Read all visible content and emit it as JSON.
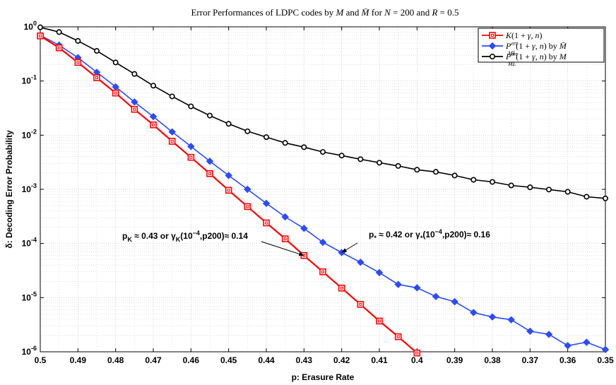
{
  "chart_data": {
    "type": "line",
    "title": "Error Performances of LDPC codes by M and M̄ for N = 200 and R = 0.5",
    "xlabel": "p: Erasure Rate",
    "ylabel": "δ: Decoding Error Probability",
    "xlim": [
      0.5,
      0.35
    ],
    "xdirection": "reversed",
    "ylim": [
      1e-06,
      1
    ],
    "yscale": "log",
    "grid": true,
    "legend_position": "top-right",
    "xticks": [
      0.5,
      0.49,
      0.48,
      0.47,
      0.46,
      0.45,
      0.44,
      0.43,
      0.42,
      0.41,
      0.4,
      0.39,
      0.38,
      0.37,
      0.36,
      0.35
    ],
    "xtick_labels": [
      "0.5",
      "0.49",
      "0.48",
      "0.47",
      "0.46",
      "0.45",
      "0.44",
      "0.43",
      "0.42",
      "0.41",
      "0.4",
      "0.39",
      "0.38",
      "0.37",
      "0.36",
      "0.35"
    ],
    "yticks": [
      {
        "exp": "0",
        "value": 1
      },
      {
        "exp": "-1",
        "value": 0.1
      },
      {
        "exp": "-2",
        "value": 0.01
      },
      {
        "exp": "-3",
        "value": 0.001
      },
      {
        "exp": "-4",
        "value": 0.0001
      },
      {
        "exp": "-5",
        "value": 1e-05
      },
      {
        "exp": "-6",
        "value": 1e-06
      }
    ],
    "ytick_base": "10",
    "series": [
      {
        "name": "K(1 + γ, n)",
        "color": "#ff0000",
        "marker": "square",
        "x": [
          0.5,
          0.495,
          0.49,
          0.485,
          0.48,
          0.475,
          0.47,
          0.465,
          0.46,
          0.455,
          0.45,
          0.445,
          0.44,
          0.435,
          0.43,
          0.425,
          0.42,
          0.415,
          0.41,
          0.405,
          0.4
        ],
        "y": [
          0.68,
          0.41,
          0.22,
          0.115,
          0.06,
          0.03,
          0.0155,
          0.0077,
          0.0039,
          0.00195,
          0.00096,
          0.00048,
          0.00024,
          0.000122,
          6e-05,
          3e-05,
          1.5e-05,
          7.5e-06,
          3.7e-06,
          1.9e-06,
          9.5e-07
        ]
      },
      {
        "name": "P_ML^err(1 + γ, n) by M̄",
        "color": "#2a4bff",
        "marker": "diamond",
        "x": [
          0.5,
          0.495,
          0.49,
          0.485,
          0.48,
          0.475,
          0.47,
          0.465,
          0.46,
          0.455,
          0.45,
          0.445,
          0.44,
          0.435,
          0.43,
          0.425,
          0.42,
          0.415,
          0.41,
          0.405,
          0.4,
          0.395,
          0.39,
          0.385,
          0.38,
          0.375,
          0.37,
          0.365,
          0.36,
          0.355,
          0.35
        ],
        "y": [
          0.7,
          0.46,
          0.27,
          0.145,
          0.078,
          0.041,
          0.022,
          0.0115,
          0.0062,
          0.0033,
          0.0018,
          0.001,
          0.00055,
          0.00031,
          0.00019,
          0.000105,
          6.8e-05,
          4.5e-05,
          2.9e-05,
          1.75e-05,
          1.52e-05,
          1.05e-05,
          8.4e-06,
          5.3e-06,
          4.4e-06,
          3.9e-06,
          2.4e-06,
          2.1e-06,
          1.3e-06,
          1.5e-06,
          1.1e-06
        ]
      },
      {
        "name": "P_ML^err(1 + γ, n) by M",
        "color": "#000000",
        "marker": "circle",
        "x": [
          0.5,
          0.495,
          0.49,
          0.485,
          0.48,
          0.475,
          0.47,
          0.465,
          0.46,
          0.455,
          0.45,
          0.445,
          0.44,
          0.435,
          0.43,
          0.425,
          0.42,
          0.415,
          0.41,
          0.405,
          0.4,
          0.395,
          0.39,
          0.385,
          0.38,
          0.375,
          0.37,
          0.365,
          0.36,
          0.355,
          0.35
        ],
        "y": [
          0.98,
          0.8,
          0.55,
          0.36,
          0.22,
          0.135,
          0.082,
          0.052,
          0.034,
          0.023,
          0.0162,
          0.0118,
          0.0092,
          0.0072,
          0.006,
          0.0049,
          0.0042,
          0.0036,
          0.0031,
          0.0027,
          0.0023,
          0.0021,
          0.0018,
          0.0015,
          0.00137,
          0.00118,
          0.00109,
          0.00099,
          0.0009,
          0.00073,
          0.00068
        ]
      }
    ],
    "annotations": [
      {
        "id": "pk",
        "text_parts": [
          "p",
          "K",
          " ≈ 0.43    or    γ",
          "K",
          "(10",
          "−4",
          ",p200)≈ 0.14"
        ],
        "arrow_to": {
          "x": 0.43,
          "y": 6e-05
        }
      },
      {
        "id": "pstar",
        "text_parts": [
          "p",
          "*",
          " ≈ 0.42    or    γ",
          "*",
          "(10",
          "−4",
          ",p200)≈ 0.16"
        ],
        "arrow_to": {
          "x": 0.42,
          "y": 6.8e-05
        }
      }
    ]
  }
}
